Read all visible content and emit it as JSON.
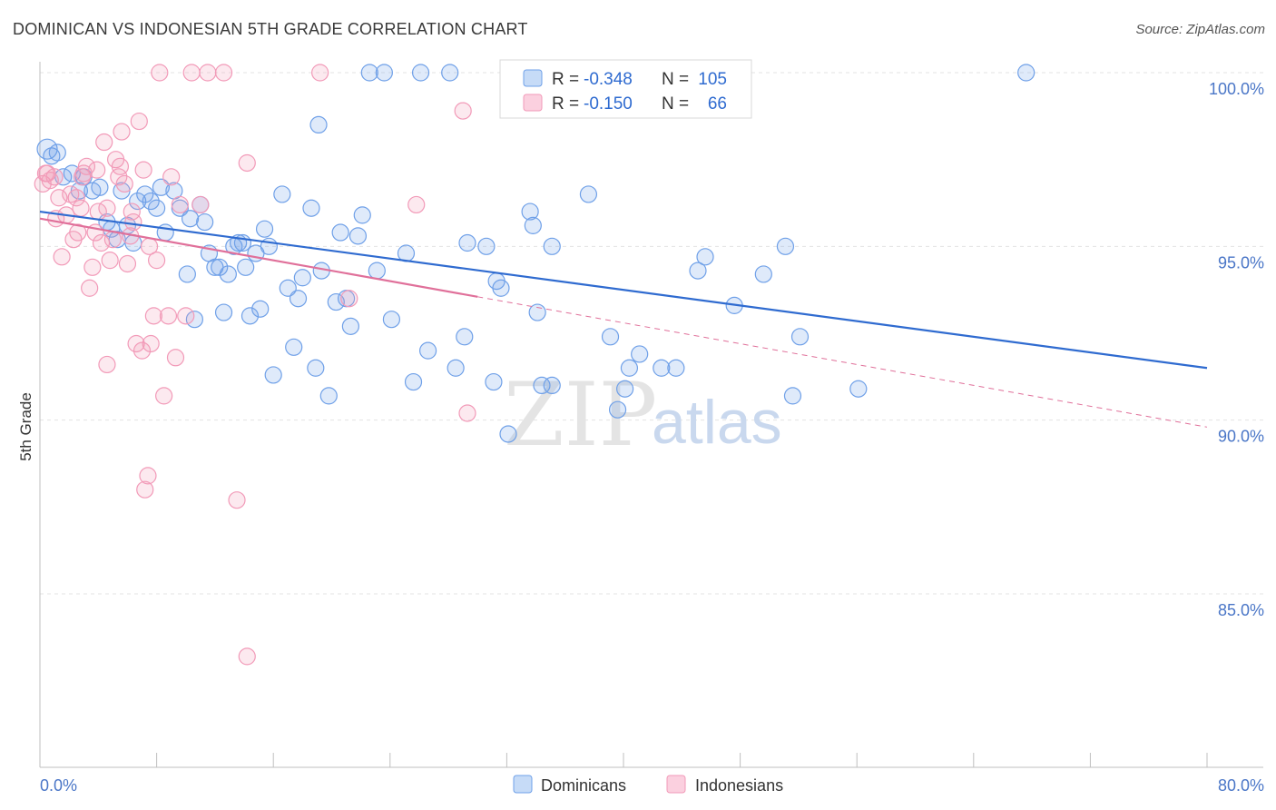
{
  "title": "DOMINICAN VS INDONESIAN 5TH GRADE CORRELATION CHART",
  "source": "Source: ZipAtlas.com",
  "watermark": {
    "zip": "ZIP",
    "atlas": "atlas"
  },
  "legend": {
    "rows": [
      {
        "r_label": "R = ",
        "r_value": "-0.348",
        "n_label": "N = ",
        "n_value": "105"
      },
      {
        "r_label": "R = ",
        "r_value": "-0.150",
        "n_label": "N = ",
        "n_value": "66"
      }
    ]
  },
  "colors": {
    "dominicans": "#6fa0e8",
    "indonesians": "#f29ab8",
    "dom_line": "#2f6bd0",
    "ind_line": "#e0709a",
    "axis_label": "#4a76c7"
  },
  "chart_data": {
    "type": "scatter",
    "title": "DOMINICAN VS INDONESIAN 5TH GRADE CORRELATION CHART",
    "xlabel": "",
    "ylabel": "5th Grade",
    "xlim": [
      0,
      80
    ],
    "ylim": [
      80.5,
      101.0
    ],
    "x_tick_labels": [
      "0.0%",
      "80.0%"
    ],
    "y_ticks": [
      85,
      90,
      95,
      100
    ],
    "y_tick_labels": [
      "85.0%",
      "90.0%",
      "95.0%",
      "100.0%"
    ],
    "grid": true,
    "legend_position": "bottom-center",
    "series": [
      {
        "name": "Dominicans",
        "color": "#6fa0e8",
        "r": -0.348,
        "n": 105,
        "trend": {
          "x": [
            0,
            80
          ],
          "y": [
            96.0,
            91.5
          ]
        },
        "points": [
          [
            0.5,
            97.8
          ],
          [
            0.8,
            97.6
          ],
          [
            1.2,
            97.7
          ],
          [
            1.6,
            97.0
          ],
          [
            2.2,
            97.1
          ],
          [
            2.7,
            96.6
          ],
          [
            3.0,
            97.0
          ],
          [
            3.6,
            96.6
          ],
          [
            4.1,
            96.7
          ],
          [
            4.6,
            95.7
          ],
          [
            4.9,
            95.5
          ],
          [
            5.3,
            95.2
          ],
          [
            5.6,
            96.6
          ],
          [
            6.0,
            95.6
          ],
          [
            6.4,
            95.1
          ],
          [
            6.7,
            96.3
          ],
          [
            7.2,
            96.5
          ],
          [
            7.6,
            96.3
          ],
          [
            8.0,
            96.1
          ],
          [
            8.3,
            96.7
          ],
          [
            8.6,
            95.4
          ],
          [
            9.2,
            96.6
          ],
          [
            9.6,
            96.1
          ],
          [
            10.1,
            94.2
          ],
          [
            10.3,
            95.8
          ],
          [
            10.6,
            92.9
          ],
          [
            11.0,
            96.2
          ],
          [
            11.3,
            95.7
          ],
          [
            11.6,
            94.8
          ],
          [
            12.0,
            94.4
          ],
          [
            12.3,
            94.4
          ],
          [
            12.6,
            93.1
          ],
          [
            12.9,
            94.2
          ],
          [
            13.3,
            95.0
          ],
          [
            13.6,
            95.1
          ],
          [
            13.9,
            95.1
          ],
          [
            14.1,
            94.4
          ],
          [
            14.4,
            93.0
          ],
          [
            14.8,
            94.8
          ],
          [
            15.1,
            93.2
          ],
          [
            15.4,
            95.5
          ],
          [
            15.7,
            95.0
          ],
          [
            16.0,
            91.3
          ],
          [
            16.6,
            96.5
          ],
          [
            17.0,
            93.8
          ],
          [
            17.4,
            92.1
          ],
          [
            17.7,
            93.5
          ],
          [
            18.0,
            94.1
          ],
          [
            18.6,
            96.1
          ],
          [
            18.9,
            91.5
          ],
          [
            19.1,
            98.5
          ],
          [
            19.3,
            94.3
          ],
          [
            19.8,
            90.7
          ],
          [
            20.3,
            93.4
          ],
          [
            20.6,
            95.4
          ],
          [
            21.0,
            93.5
          ],
          [
            21.3,
            92.7
          ],
          [
            21.8,
            95.3
          ],
          [
            22.1,
            95.9
          ],
          [
            22.6,
            100.0
          ],
          [
            23.1,
            94.3
          ],
          [
            23.6,
            100.0
          ],
          [
            24.1,
            92.9
          ],
          [
            25.1,
            94.8
          ],
          [
            25.6,
            91.1
          ],
          [
            26.1,
            100.0
          ],
          [
            26.6,
            92.0
          ],
          [
            28.1,
            100.0
          ],
          [
            28.5,
            91.5
          ],
          [
            29.1,
            92.4
          ],
          [
            29.3,
            95.1
          ],
          [
            30.6,
            95.0
          ],
          [
            31.1,
            91.1
          ],
          [
            31.3,
            94.0
          ],
          [
            31.6,
            93.8
          ],
          [
            32.1,
            89.6
          ],
          [
            33.6,
            96.0
          ],
          [
            33.8,
            95.6
          ],
          [
            34.1,
            93.1
          ],
          [
            34.4,
            91.0
          ],
          [
            35.1,
            95.0
          ],
          [
            37.6,
            96.5
          ],
          [
            39.1,
            92.4
          ],
          [
            39.6,
            90.3
          ],
          [
            40.1,
            90.9
          ],
          [
            40.4,
            91.5
          ],
          [
            41.1,
            91.9
          ],
          [
            42.6,
            91.5
          ],
          [
            43.6,
            91.5
          ],
          [
            44.6,
            100.0
          ],
          [
            45.1,
            94.3
          ],
          [
            45.6,
            94.7
          ],
          [
            47.6,
            93.3
          ],
          [
            49.6,
            94.2
          ],
          [
            51.1,
            95.0
          ],
          [
            51.6,
            90.7
          ],
          [
            52.1,
            92.4
          ],
          [
            56.1,
            90.9
          ],
          [
            67.6,
            100.0
          ],
          [
            35.1,
            91.0
          ]
        ]
      },
      {
        "name": "Indonesians",
        "color": "#f29ab8",
        "r": -0.15,
        "n": 66,
        "trend": {
          "x": [
            0,
            80
          ],
          "y": [
            95.8,
            89.8
          ]
        },
        "points": [
          [
            0.2,
            96.8
          ],
          [
            0.5,
            97.1
          ],
          [
            0.7,
            96.9
          ],
          [
            1.0,
            97.0
          ],
          [
            1.3,
            96.4
          ],
          [
            1.5,
            94.7
          ],
          [
            1.8,
            95.9
          ],
          [
            2.1,
            96.5
          ],
          [
            2.3,
            95.2
          ],
          [
            2.5,
            96.4
          ],
          [
            2.8,
            96.1
          ],
          [
            3.0,
            97.1
          ],
          [
            3.2,
            97.3
          ],
          [
            3.4,
            93.8
          ],
          [
            3.6,
            94.4
          ],
          [
            3.8,
            95.4
          ],
          [
            4.0,
            96.0
          ],
          [
            4.2,
            95.1
          ],
          [
            4.4,
            98.0
          ],
          [
            4.6,
            91.6
          ],
          [
            4.8,
            94.6
          ],
          [
            5.0,
            95.2
          ],
          [
            5.2,
            97.5
          ],
          [
            5.4,
            97.0
          ],
          [
            5.6,
            98.3
          ],
          [
            5.8,
            96.8
          ],
          [
            6.0,
            94.5
          ],
          [
            6.2,
            95.3
          ],
          [
            6.4,
            95.7
          ],
          [
            6.6,
            92.2
          ],
          [
            6.8,
            98.6
          ],
          [
            7.0,
            92.0
          ],
          [
            7.2,
            88.0
          ],
          [
            7.4,
            88.4
          ],
          [
            7.6,
            92.2
          ],
          [
            7.8,
            93.0
          ],
          [
            8.0,
            94.6
          ],
          [
            8.2,
            100.0
          ],
          [
            8.5,
            90.7
          ],
          [
            8.8,
            93.0
          ],
          [
            9.0,
            97.0
          ],
          [
            9.3,
            91.8
          ],
          [
            9.6,
            96.2
          ],
          [
            10.0,
            93.0
          ],
          [
            10.4,
            100.0
          ],
          [
            11.0,
            96.2
          ],
          [
            11.5,
            100.0
          ],
          [
            12.6,
            100.0
          ],
          [
            13.5,
            87.7
          ],
          [
            14.2,
            97.4
          ],
          [
            14.2,
            83.2
          ],
          [
            19.2,
            100.0
          ],
          [
            21.2,
            93.5
          ],
          [
            25.8,
            96.2
          ],
          [
            29.0,
            98.9
          ],
          [
            29.3,
            90.2
          ],
          [
            0.4,
            97.1
          ],
          [
            2.6,
            95.4
          ],
          [
            3.9,
            97.2
          ],
          [
            4.6,
            96.1
          ],
          [
            5.5,
            97.3
          ],
          [
            6.3,
            96.0
          ],
          [
            7.1,
            97.2
          ],
          [
            7.5,
            95.0
          ],
          [
            1.1,
            95.8
          ],
          [
            2.9,
            97.0
          ]
        ]
      }
    ]
  },
  "bottom_legend": {
    "items": [
      "Dominicans",
      "Indonesians"
    ]
  }
}
